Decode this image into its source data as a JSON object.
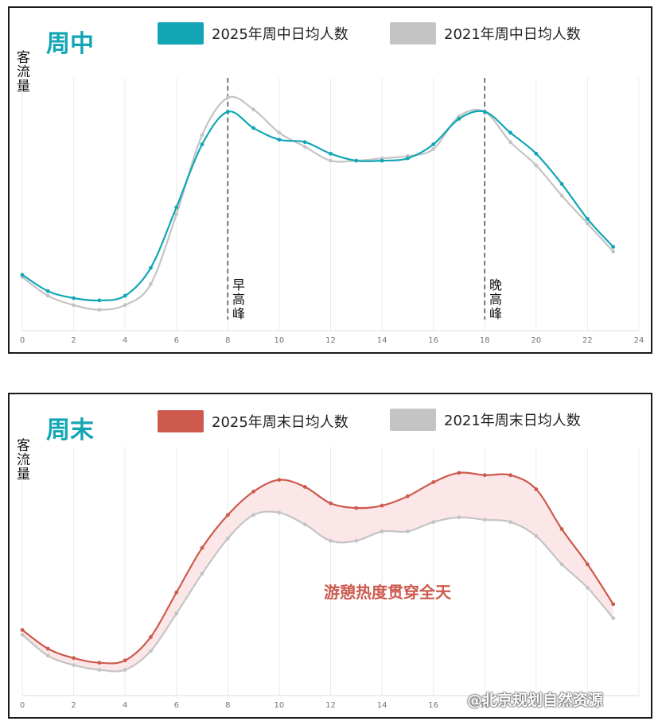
{
  "colors": {
    "teal": "#12a6b5",
    "grey": "#c4c4c4",
    "red": "#cd5a4d",
    "fill": "#fbe3e4"
  },
  "watermark": "@北京规划自然资源",
  "chart_data": [
    {
      "type": "line",
      "title": "周中",
      "ylabel": "客流量",
      "xlim": [
        0,
        24
      ],
      "xticks": [
        0,
        2,
        4,
        6,
        8,
        10,
        12,
        14,
        16,
        18,
        20,
        22,
        24
      ],
      "x": [
        0,
        1,
        2,
        3,
        4,
        5,
        6,
        7,
        8,
        9,
        10,
        11,
        12,
        13,
        14,
        15,
        16,
        17,
        18,
        19,
        20,
        21,
        22,
        23
      ],
      "ylim": [
        0,
        100
      ],
      "series": [
        {
          "name": "2025年周中日均人数",
          "color": "#12a6b5",
          "values": [
            24,
            17,
            14,
            13,
            15,
            27,
            53,
            80,
            94,
            87,
            82,
            81,
            76,
            73,
            73,
            74,
            80,
            91,
            94,
            85,
            76,
            63,
            48,
            36
          ]
        },
        {
          "name": "2021年周中日均人数",
          "color": "#c4c4c4",
          "values": [
            23,
            15,
            11,
            9,
            11,
            20,
            50,
            84,
            100,
            95,
            85,
            79,
            73,
            73,
            74,
            75,
            78,
            92,
            94,
            81,
            71,
            58,
            46,
            34
          ]
        }
      ],
      "annotations": [
        {
          "x": 8,
          "label": "早高峰"
        },
        {
          "x": 18,
          "label": "晚高峰"
        }
      ]
    },
    {
      "type": "area",
      "title": "周末",
      "ylabel": "客流量",
      "xlim": [
        0,
        24
      ],
      "xticks": [
        0,
        2,
        4,
        6,
        8,
        10,
        12,
        14,
        16,
        18
      ],
      "x": [
        0,
        1,
        2,
        3,
        4,
        5,
        6,
        7,
        8,
        9,
        10,
        11,
        12,
        13,
        14,
        15,
        16,
        17,
        18,
        19,
        20,
        21,
        22,
        23
      ],
      "ylim": [
        0,
        100
      ],
      "series": [
        {
          "name": "2025年周末日均人数",
          "color": "#cd5a4d",
          "values": [
            28,
            20,
            16,
            14,
            15,
            25,
            44,
            63,
            77,
            87,
            92,
            89,
            82,
            80,
            81,
            85,
            91,
            95,
            94,
            94,
            88,
            71,
            56,
            39
          ]
        },
        {
          "name": "2021年周末日均人数",
          "color": "#c4c4c4",
          "values": [
            26,
            17,
            13,
            11,
            11,
            19,
            35,
            52,
            67,
            77,
            78,
            73,
            66,
            66,
            70,
            70,
            74,
            76,
            75,
            74,
            68,
            56,
            46,
            33
          ]
        }
      ],
      "annotations": [
        {
          "text": "游憩热度贯穿全天"
        }
      ]
    }
  ]
}
